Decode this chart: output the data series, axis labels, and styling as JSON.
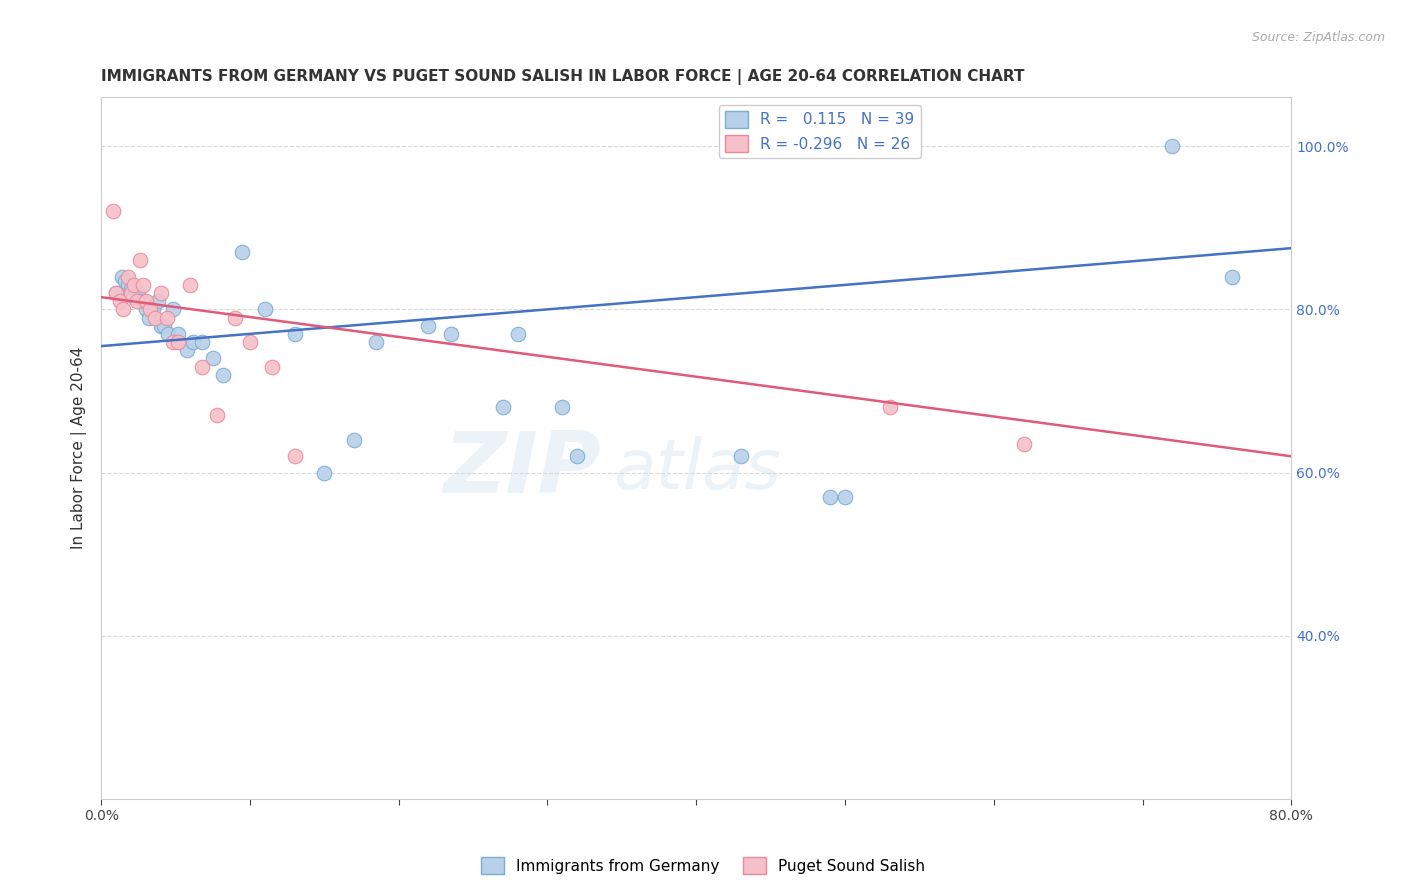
{
  "title": "IMMIGRANTS FROM GERMANY VS PUGET SOUND SALISH IN LABOR FORCE | AGE 20-64 CORRELATION CHART",
  "source": "Source: ZipAtlas.com",
  "ylabel": "In Labor Force | Age 20-64",
  "xlim": [
    0.0,
    0.8
  ],
  "ylim": [
    0.2,
    1.06
  ],
  "xticks": [
    0.0,
    0.1,
    0.2,
    0.3,
    0.4,
    0.5,
    0.6,
    0.7,
    0.8
  ],
  "xticklabels": [
    "0.0%",
    "",
    "",
    "",
    "",
    "",
    "",
    "",
    "80.0%"
  ],
  "yticks_right": [
    0.4,
    0.6,
    0.8,
    1.0
  ],
  "yticklabels_right": [
    "40.0%",
    "60.0%",
    "80.0%",
    "100.0%"
  ],
  "legend_r_blue": "0.115",
  "legend_n_blue": "39",
  "legend_r_pink": "-0.296",
  "legend_n_pink": "26",
  "blue_scatter_x": [
    0.01,
    0.014,
    0.016,
    0.018,
    0.02,
    0.022,
    0.025,
    0.028,
    0.03,
    0.032,
    0.035,
    0.038,
    0.04,
    0.042,
    0.045,
    0.048,
    0.052,
    0.058,
    0.062,
    0.068,
    0.075,
    0.082,
    0.095,
    0.11,
    0.13,
    0.15,
    0.17,
    0.185,
    0.22,
    0.235,
    0.27,
    0.28,
    0.31,
    0.32,
    0.43,
    0.49,
    0.5,
    0.72,
    0.76
  ],
  "blue_scatter_y": [
    0.82,
    0.84,
    0.835,
    0.83,
    0.825,
    0.815,
    0.82,
    0.81,
    0.8,
    0.79,
    0.8,
    0.81,
    0.78,
    0.78,
    0.77,
    0.8,
    0.77,
    0.75,
    0.76,
    0.76,
    0.74,
    0.72,
    0.87,
    0.8,
    0.77,
    0.6,
    0.64,
    0.76,
    0.78,
    0.77,
    0.68,
    0.77,
    0.68,
    0.62,
    0.62,
    0.57,
    0.57,
    1.0,
    0.84
  ],
  "pink_scatter_x": [
    0.008,
    0.01,
    0.013,
    0.015,
    0.018,
    0.02,
    0.022,
    0.024,
    0.026,
    0.028,
    0.03,
    0.033,
    0.036,
    0.04,
    0.044,
    0.048,
    0.052,
    0.06,
    0.068,
    0.078,
    0.09,
    0.1,
    0.115,
    0.13,
    0.53,
    0.62
  ],
  "pink_scatter_y": [
    0.92,
    0.82,
    0.81,
    0.8,
    0.84,
    0.82,
    0.83,
    0.81,
    0.86,
    0.83,
    0.81,
    0.8,
    0.79,
    0.82,
    0.79,
    0.76,
    0.76,
    0.83,
    0.73,
    0.67,
    0.79,
    0.76,
    0.73,
    0.62,
    0.68,
    0.635
  ],
  "blue_line_x0": 0.0,
  "blue_line_x1": 0.8,
  "blue_line_y0": 0.755,
  "blue_line_y1": 0.875,
  "pink_line_x0": 0.0,
  "pink_line_x1": 0.8,
  "pink_line_y0": 0.815,
  "pink_line_y1": 0.62,
  "scatter_size": 110,
  "blue_color": "#b8d0e8",
  "blue_edge": "#7aadd4",
  "blue_line_color": "#4472c4",
  "pink_color": "#f5c0ca",
  "pink_edge": "#e88a9a",
  "pink_line_color": "#e05a7a",
  "grid_color": "#d8d8d8",
  "watermark_zip": "ZIP",
  "watermark_atlas": "atlas",
  "bg_color": "#ffffff"
}
